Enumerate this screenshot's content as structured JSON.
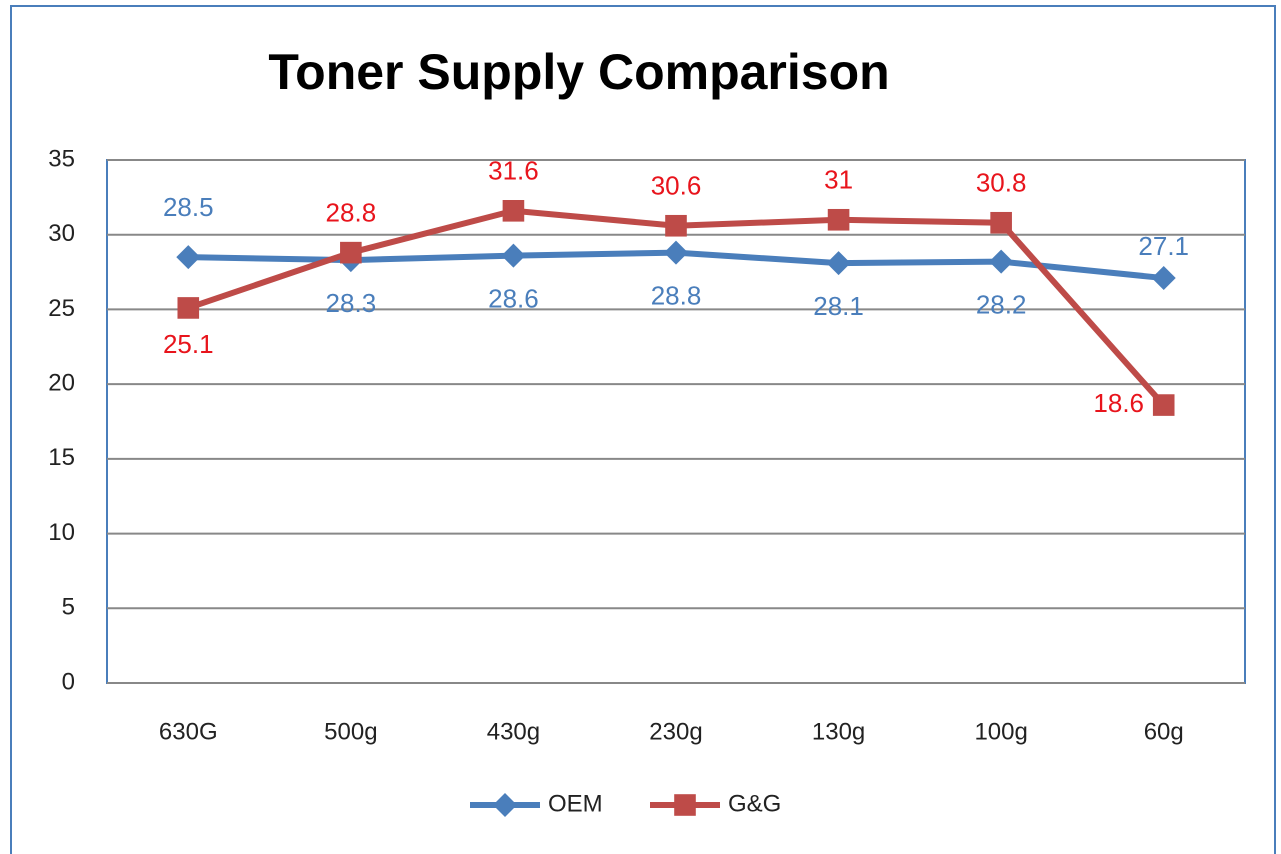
{
  "chart_data": {
    "type": "line",
    "title": "Toner Supply Comparison",
    "categories": [
      "630G",
      "500g",
      "430g",
      "230g",
      "130g",
      "100g",
      "60g"
    ],
    "series": [
      {
        "name": "OEM",
        "color": "#4a7ebb",
        "marker": "diamond",
        "values": [
          28.5,
          28.3,
          28.6,
          28.8,
          28.1,
          28.2,
          27.1
        ]
      },
      {
        "name": "G&G",
        "color": "#be4b48",
        "label_color": "#e8141c",
        "marker": "square",
        "values": [
          25.1,
          28.8,
          31.6,
          30.6,
          31,
          30.8,
          18.6
        ]
      }
    ],
    "ylim": [
      0,
      35
    ],
    "yticks": [
      0,
      5,
      10,
      15,
      20,
      25,
      30,
      35
    ],
    "grid": true,
    "legend": "bottom"
  }
}
